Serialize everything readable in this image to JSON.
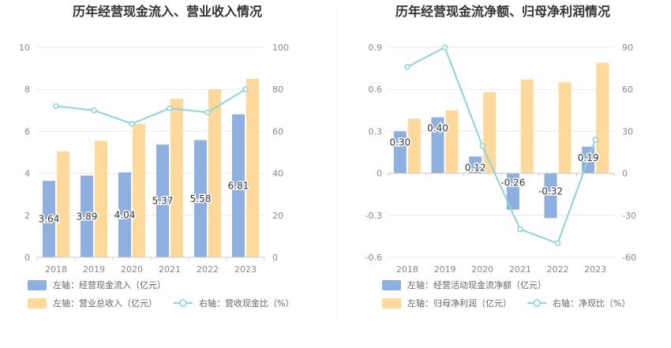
{
  "chart_data": [
    {
      "type": "bar+line",
      "title": "历年经营现金流入、营业收入情况",
      "categories": [
        "2018",
        "2019",
        "2020",
        "2021",
        "2022",
        "2023"
      ],
      "left_axis": {
        "ylim": [
          0,
          10
        ],
        "ticks": [
          "0",
          "2",
          "4",
          "6",
          "8",
          "10"
        ]
      },
      "right_axis": {
        "ylim": [
          0,
          100
        ],
        "ticks": [
          "0",
          "20",
          "40",
          "60",
          "80",
          "100"
        ]
      },
      "series": [
        {
          "name": "左轴：经营现金流入（亿元）",
          "kind": "bar",
          "axis": "left",
          "color": "#8eb0e0",
          "values": [
            3.64,
            3.89,
            4.04,
            5.37,
            5.58,
            6.81
          ],
          "labels": [
            "3.64",
            "3.89",
            "4.04",
            "5.37",
            "5.58",
            "6.81"
          ]
        },
        {
          "name": "左轴：营业总收入（亿元）",
          "kind": "bar",
          "axis": "left",
          "color": "#ffd999",
          "values": [
            5.05,
            5.55,
            6.35,
            7.55,
            8.0,
            8.5
          ]
        },
        {
          "name": "右轴：营收现金比（%）",
          "kind": "line",
          "axis": "right",
          "color": "#88d5e0",
          "values": [
            72,
            70,
            63.6,
            71,
            69,
            80
          ]
        }
      ]
    },
    {
      "type": "bar+line",
      "title": "历年经营现金流净额、归母净利润情况",
      "categories": [
        "2018",
        "2019",
        "2020",
        "2021",
        "2022",
        "2023"
      ],
      "left_axis": {
        "ylim": [
          -0.6,
          0.9
        ],
        "ticks": [
          "-0.6",
          "-0.3",
          "0",
          "0.3",
          "0.6",
          "0.9"
        ]
      },
      "right_axis": {
        "ylim": [
          -60,
          90
        ],
        "ticks": [
          "-60",
          "-30",
          "0",
          "30",
          "60",
          "90"
        ]
      },
      "series": [
        {
          "name": "左轴：经营活动现金流净额（亿元）",
          "kind": "bar",
          "axis": "left",
          "color": "#8eb0e0",
          "values": [
            0.3,
            0.4,
            0.12,
            -0.26,
            -0.32,
            0.19
          ],
          "labels": [
            "0.30",
            "0.40",
            "0.12",
            "-0.26",
            "-0.32",
            "0.19"
          ]
        },
        {
          "name": "左轴：归母净利润（亿元）",
          "kind": "bar",
          "axis": "left",
          "color": "#ffd999",
          "values": [
            0.39,
            0.45,
            0.58,
            0.67,
            0.65,
            0.79
          ]
        },
        {
          "name": "右轴：净现比（%）",
          "kind": "line",
          "axis": "right",
          "color": "#88d5e0",
          "values": [
            76,
            90,
            19.5,
            -40,
            -50,
            24
          ]
        }
      ]
    }
  ]
}
